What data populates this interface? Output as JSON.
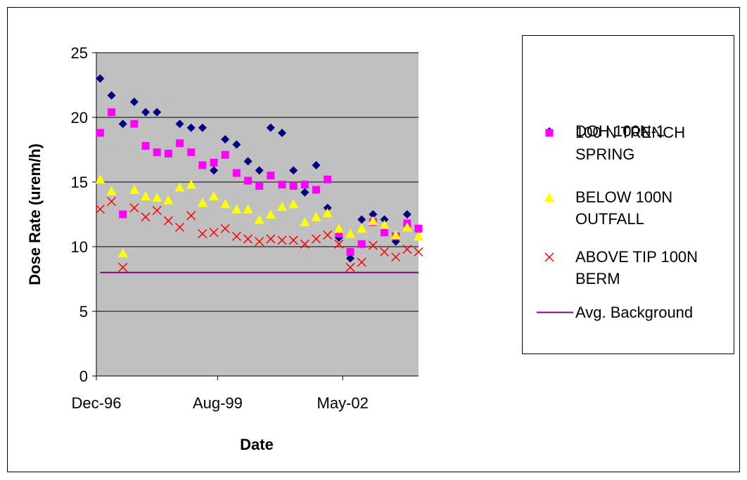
{
  "chart_data": {
    "type": "scatter",
    "x_label": "Date",
    "y_label": "Dose Rate (urem/h)",
    "x": [
      "1997-01",
      "1997-04",
      "1997-07",
      "1997-10",
      "1998-01",
      "1998-04",
      "1998-07",
      "1998-10",
      "1999-01",
      "1999-04",
      "1999-07",
      "1999-10",
      "2000-01",
      "2000-04",
      "2000-07",
      "2000-10",
      "2001-01",
      "2001-04",
      "2001-07",
      "2001-10",
      "2002-01",
      "2002-04",
      "2002-07",
      "2002-10",
      "2003-01",
      "2003-04",
      "2003-07",
      "2003-10",
      "2004-01"
    ],
    "xlim": [
      "1996-12",
      "2004-01"
    ],
    "xticks": [
      {
        "value": "1996-12",
        "label": "Dec-96"
      },
      {
        "value": "1999-08",
        "label": "Aug-99"
      },
      {
        "value": "2002-05",
        "label": "May-02"
      }
    ],
    "ylim": [
      0,
      25
    ],
    "yticks": [
      0,
      5,
      10,
      15,
      20,
      25
    ],
    "grid": true,
    "series": [
      {
        "name": "DOH 100N-1",
        "color": "#000080",
        "marker": "diamond",
        "values": [
          23.0,
          21.7,
          19.5,
          21.2,
          20.4,
          20.4,
          17.2,
          19.5,
          19.2,
          19.2,
          15.9,
          18.3,
          17.9,
          16.6,
          15.9,
          19.2,
          18.8,
          15.9,
          14.2,
          16.3,
          13.0,
          10.7,
          9.1,
          12.1,
          12.5,
          12.1,
          10.4,
          12.5,
          11.3
        ]
      },
      {
        "name": "100 N TRENCH SPRING",
        "color": "#ff00ff",
        "marker": "square",
        "values": [
          18.8,
          20.4,
          12.5,
          19.5,
          17.8,
          17.3,
          17.2,
          18.0,
          17.3,
          16.3,
          16.5,
          17.1,
          15.7,
          15.1,
          14.7,
          15.5,
          14.8,
          14.7,
          14.8,
          14.4,
          15.2,
          11.0,
          9.6,
          10.2,
          11.9,
          11.1,
          10.8,
          11.8,
          11.4
        ]
      },
      {
        "name": "BELOW 100N OUTFALL",
        "color": "#ffff00",
        "marker": "triangle",
        "values": [
          15.2,
          14.3,
          9.5,
          14.4,
          13.9,
          13.8,
          13.6,
          14.6,
          14.8,
          13.4,
          13.9,
          13.3,
          12.9,
          12.9,
          12.1,
          12.5,
          13.1,
          13.3,
          11.9,
          12.3,
          12.6,
          11.4,
          11.0,
          11.4,
          12.0,
          11.7,
          10.9,
          11.5,
          10.8
        ]
      },
      {
        "name": "ABOVE TIP 100N BERM",
        "color": "#ff0000",
        "marker": "x",
        "values": [
          12.9,
          13.5,
          8.4,
          13.0,
          12.3,
          12.8,
          12.0,
          11.5,
          12.4,
          11.0,
          11.1,
          11.4,
          10.8,
          10.6,
          10.4,
          10.6,
          10.5,
          10.5,
          10.2,
          10.6,
          10.9,
          10.2,
          8.4,
          8.8,
          10.1,
          9.6,
          9.2,
          9.8,
          9.6
        ]
      },
      {
        "name": "Avg. Background",
        "color": "#800080",
        "marker": "line",
        "x": [
          "1997-01",
          "2004-01"
        ],
        "values": [
          8,
          8
        ]
      }
    ]
  }
}
